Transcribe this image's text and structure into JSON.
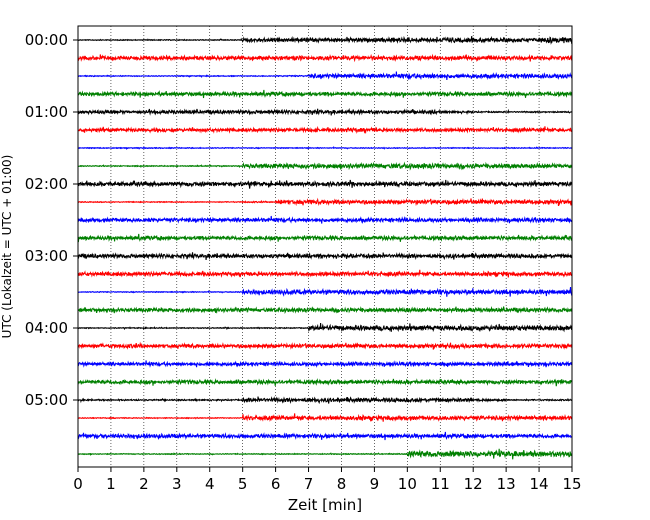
{
  "chart_data": {
    "type": "line",
    "title": "",
    "xlabel": "Zeit  [min]",
    "ylabel": "UTC (Lokalzeit = UTC + 01:00)",
    "xlim": [
      0,
      15
    ],
    "x_ticks": [
      "0",
      "1",
      "2",
      "3",
      "4",
      "5",
      "6",
      "7",
      "8",
      "9",
      "10",
      "11",
      "12",
      "13",
      "14",
      "15"
    ],
    "y_tick_labels": [
      "00:00",
      "01:00",
      "02:00",
      "03:00",
      "04:00",
      "05:00"
    ],
    "grid": "vertical dotted",
    "colors": [
      "#000000",
      "#ff0000",
      "#0000ff",
      "#008000"
    ],
    "series": [
      {
        "start": "00:00",
        "color": "#000000",
        "amplitude": [
          0.2,
          0.2,
          0.2,
          0.2,
          0.2,
          0.9,
          1.0,
          0.9,
          0.9,
          1.0,
          1.0,
          1.2,
          1.0,
          1.0,
          1.5
        ]
      },
      {
        "start": "00:15",
        "color": "#ff0000",
        "amplitude": [
          0.9,
          0.9,
          1.0,
          0.9,
          0.9,
          1.0,
          1.0,
          1.0,
          1.0,
          1.0,
          1.0,
          0.9,
          0.9,
          0.9,
          0.9
        ]
      },
      {
        "start": "00:30",
        "color": "#0000ff",
        "amplitude": [
          0.2,
          0.2,
          0.2,
          0.2,
          0.2,
          0.2,
          0.3,
          1.0,
          1.0,
          1.0,
          1.2,
          1.0,
          1.0,
          1.0,
          1.0
        ]
      },
      {
        "start": "00:45",
        "color": "#008000",
        "amplitude": [
          0.8,
          0.8,
          0.9,
          0.9,
          0.9,
          0.9,
          0.9,
          0.9,
          0.9,
          0.9,
          0.9,
          0.9,
          0.9,
          0.9,
          0.9
        ]
      },
      {
        "start": "01:00",
        "color": "#000000",
        "amplitude": [
          0.7,
          0.7,
          0.8,
          0.8,
          0.8,
          0.8,
          0.8,
          0.8,
          0.8,
          0.8,
          0.8,
          0.5,
          0.3,
          0.3,
          0.3
        ]
      },
      {
        "start": "01:15",
        "color": "#ff0000",
        "amplitude": [
          0.8,
          0.8,
          0.8,
          0.8,
          0.8,
          0.8,
          0.8,
          0.8,
          1.0,
          0.8,
          0.8,
          0.8,
          0.8,
          0.8,
          0.8
        ]
      },
      {
        "start": "01:30",
        "color": "#0000ff",
        "amplitude": [
          0.2,
          0.2,
          0.2,
          0.2,
          0.2,
          0.2,
          0.2,
          0.2,
          0.2,
          0.2,
          0.2,
          0.2,
          0.2,
          0.2,
          0.2
        ]
      },
      {
        "start": "01:45",
        "color": "#008000",
        "amplitude": [
          0.2,
          0.2,
          0.2,
          0.2,
          0.2,
          1.0,
          1.2,
          1.1,
          1.1,
          1.2,
          1.1,
          1.1,
          1.0,
          1.0,
          1.0
        ]
      },
      {
        "start": "02:00",
        "color": "#000000",
        "amplitude": [
          1.0,
          1.0,
          1.0,
          1.0,
          1.0,
          1.0,
          1.0,
          1.0,
          1.0,
          1.0,
          1.0,
          1.0,
          1.0,
          1.0,
          1.0
        ]
      },
      {
        "start": "02:15",
        "color": "#ff0000",
        "amplitude": [
          0.2,
          0.2,
          0.2,
          0.2,
          0.2,
          0.3,
          1.1,
          1.1,
          1.0,
          1.0,
          1.0,
          1.0,
          1.0,
          1.0,
          1.0
        ]
      },
      {
        "start": "02:30",
        "color": "#0000ff",
        "amplitude": [
          0.9,
          0.9,
          0.9,
          0.9,
          0.9,
          0.9,
          0.9,
          0.9,
          0.9,
          0.9,
          0.9,
          0.9,
          0.9,
          0.9,
          0.9
        ]
      },
      {
        "start": "02:45",
        "color": "#008000",
        "amplitude": [
          0.9,
          0.9,
          0.9,
          0.9,
          0.9,
          0.9,
          0.9,
          0.9,
          0.9,
          0.9,
          0.9,
          0.9,
          0.9,
          0.9,
          0.9
        ]
      },
      {
        "start": "03:00",
        "color": "#000000",
        "amplitude": [
          0.9,
          0.9,
          0.9,
          0.9,
          0.9,
          0.9,
          0.9,
          0.9,
          0.9,
          0.9,
          0.9,
          0.9,
          0.9,
          0.9,
          0.9
        ]
      },
      {
        "start": "03:15",
        "color": "#ff0000",
        "amplitude": [
          0.9,
          0.9,
          0.9,
          0.9,
          0.9,
          0.9,
          0.9,
          0.9,
          0.9,
          0.9,
          0.9,
          0.9,
          0.9,
          0.9,
          1.0
        ]
      },
      {
        "start": "03:30",
        "color": "#0000ff",
        "amplitude": [
          0.2,
          0.2,
          0.2,
          0.2,
          0.2,
          1.0,
          1.1,
          1.1,
          1.1,
          1.1,
          1.1,
          1.1,
          1.1,
          1.0,
          1.1
        ]
      },
      {
        "start": "03:45",
        "color": "#008000",
        "amplitude": [
          0.8,
          0.8,
          0.9,
          0.9,
          0.9,
          0.9,
          0.9,
          0.9,
          0.9,
          0.9,
          0.9,
          0.9,
          0.9,
          0.9,
          0.9
        ]
      },
      {
        "start": "04:00",
        "color": "#000000",
        "amplitude": [
          0.2,
          0.2,
          0.2,
          0.2,
          0.2,
          0.2,
          0.2,
          1.2,
          1.2,
          1.2,
          1.2,
          1.2,
          1.2,
          1.2,
          1.2
        ]
      },
      {
        "start": "04:15",
        "color": "#ff0000",
        "amplitude": [
          0.9,
          0.9,
          0.9,
          0.9,
          0.9,
          0.9,
          0.9,
          0.9,
          0.9,
          0.9,
          0.9,
          0.9,
          0.9,
          0.9,
          0.9
        ]
      },
      {
        "start": "04:30",
        "color": "#0000ff",
        "amplitude": [
          0.8,
          0.8,
          0.8,
          0.8,
          0.8,
          0.8,
          0.8,
          0.8,
          0.8,
          0.8,
          0.8,
          0.8,
          0.8,
          0.8,
          0.8
        ]
      },
      {
        "start": "04:45",
        "color": "#008000",
        "amplitude": [
          0.9,
          0.9,
          0.9,
          0.9,
          0.9,
          0.9,
          0.9,
          0.9,
          0.9,
          0.9,
          0.9,
          0.9,
          0.9,
          0.9,
          0.9
        ]
      },
      {
        "start": "05:00",
        "color": "#000000",
        "amplitude": [
          0.3,
          0.3,
          0.3,
          0.3,
          0.3,
          0.9,
          0.9,
          0.9,
          0.9,
          0.9,
          0.9,
          0.9,
          0.5,
          0.3,
          0.3
        ]
      },
      {
        "start": "05:15",
        "color": "#ff0000",
        "amplitude": [
          0.2,
          0.2,
          0.2,
          0.2,
          0.2,
          1.0,
          1.0,
          1.0,
          1.0,
          1.0,
          1.0,
          1.0,
          1.0,
          1.0,
          1.0
        ]
      },
      {
        "start": "05:30",
        "color": "#0000ff",
        "amplitude": [
          0.9,
          0.9,
          0.9,
          0.9,
          0.9,
          0.9,
          0.9,
          0.9,
          0.9,
          0.9,
          0.9,
          0.9,
          0.9,
          0.9,
          0.9
        ]
      },
      {
        "start": "05:45",
        "color": "#008000",
        "amplitude": [
          0.2,
          0.2,
          0.2,
          0.2,
          0.2,
          0.2,
          0.2,
          0.2,
          0.2,
          0.2,
          1.3,
          1.4,
          1.3,
          1.2,
          1.3
        ]
      }
    ]
  }
}
